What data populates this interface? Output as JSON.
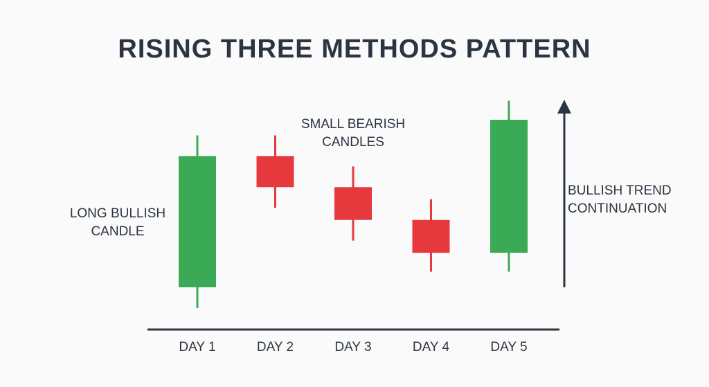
{
  "chart_data": {
    "type": "candlestick",
    "title": "RISING THREE METHODS PATTERN",
    "categories": [
      "DAY 1",
      "DAY 2",
      "DAY 3",
      "DAY 4",
      "DAY 5"
    ],
    "candles": [
      {
        "day": "DAY 1",
        "open": 0.0,
        "close": 7.6,
        "high": 8.8,
        "low": -1.2,
        "type": "bullish"
      },
      {
        "day": "DAY 2",
        "open": 7.6,
        "close": 5.8,
        "high": 8.8,
        "low": 4.6,
        "type": "bearish"
      },
      {
        "day": "DAY 3",
        "open": 5.8,
        "close": 3.9,
        "high": 7.0,
        "low": 2.7,
        "type": "bearish"
      },
      {
        "day": "DAY 4",
        "open": 3.9,
        "close": 2.0,
        "high": 5.1,
        "low": 0.9,
        "type": "bearish"
      },
      {
        "day": "DAY 5",
        "open": 2.0,
        "close": 9.7,
        "high": 10.8,
        "low": 0.9,
        "type": "bullish"
      }
    ],
    "annotations": {
      "long_bullish": [
        "LONG BULLISH",
        "CANDLE"
      ],
      "small_bearish": [
        "SMALL BEARISH",
        "CANDLES"
      ],
      "trend": [
        "BULLISH TREND",
        "CONTINUATION"
      ]
    },
    "colors": {
      "bullish": "#3aaa57",
      "bearish": "#e5393d",
      "axis": "#2b3440"
    }
  }
}
